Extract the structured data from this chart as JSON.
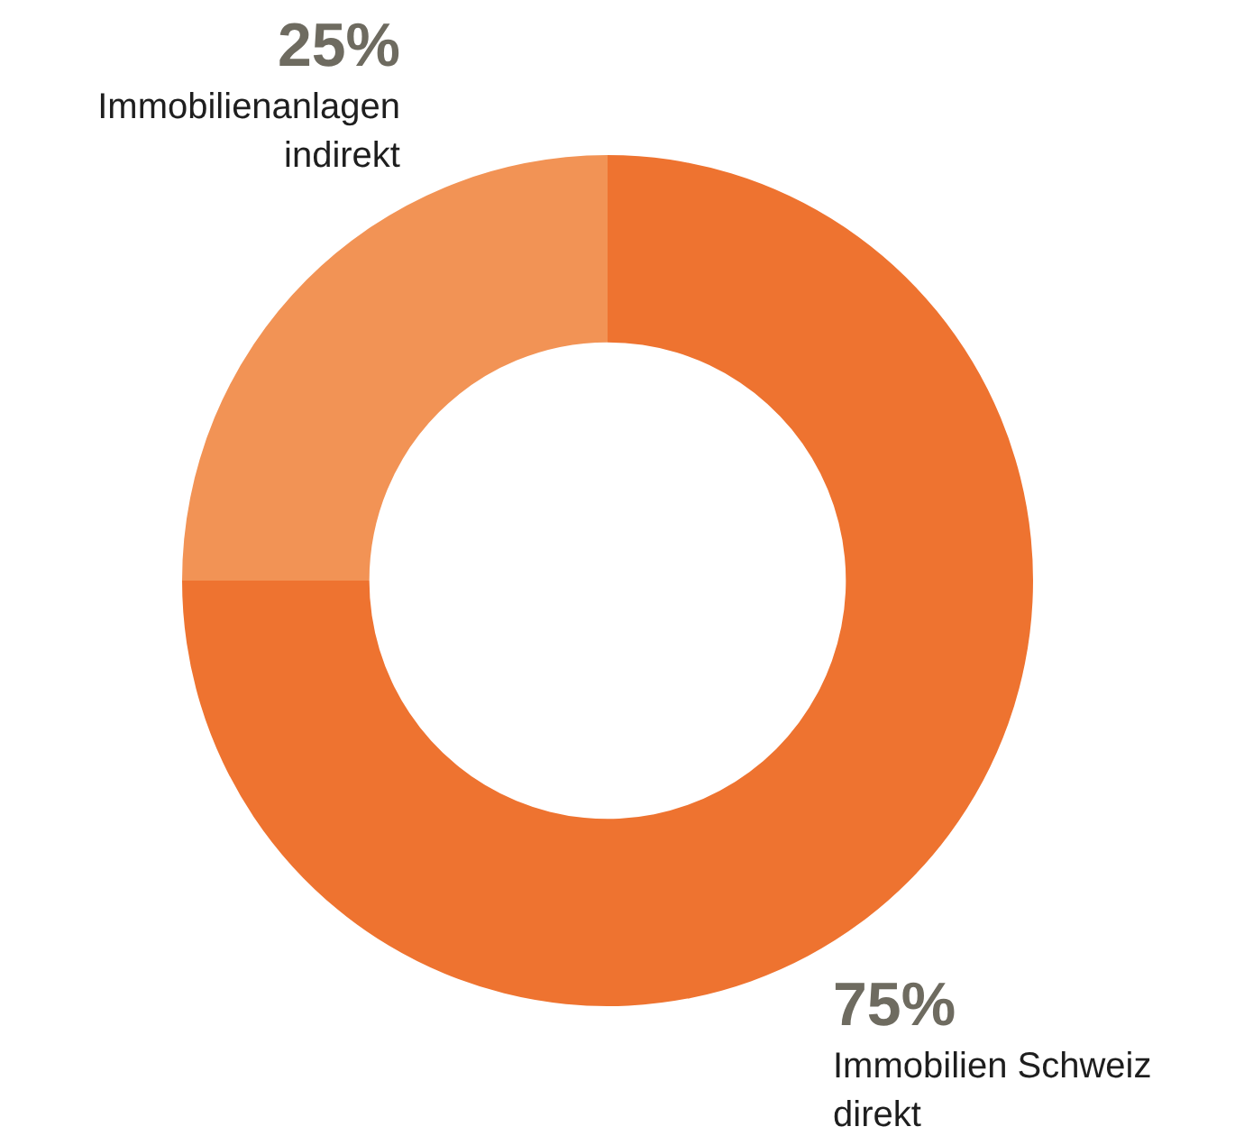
{
  "chart_data": {
    "type": "donut",
    "categories": [
      "Immobilien Schweiz direkt",
      "Immobilienanlagen indirekt"
    ],
    "values": [
      75,
      25
    ],
    "colors": [
      "#ee7330",
      "#f29355"
    ],
    "value_labels": [
      "75%",
      "25%"
    ],
    "legend": false
  }
}
